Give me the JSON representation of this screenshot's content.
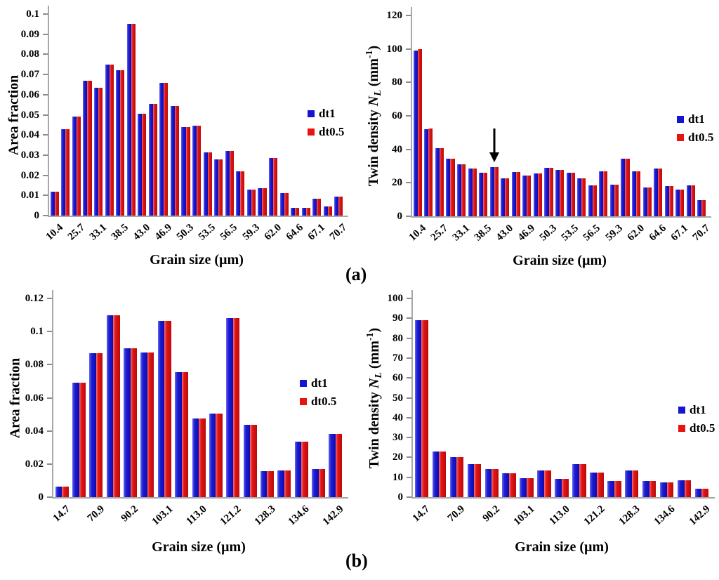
{
  "figure": {
    "panel_labels": {
      "a": "(a)",
      "b": "(b)"
    }
  },
  "colors": {
    "dt1": "#1414d2",
    "dt0.5": "#ea1111",
    "axis": "#a8a8a8",
    "text": "#000000"
  },
  "chart_data": [
    {
      "name": "area-fraction-panel-a",
      "type": "bar",
      "panel": "a",
      "position": "left",
      "title": "",
      "xlabel": "Grain size (µm)",
      "ylabel_rich": [
        [
          "Area fraction",
          ""
        ]
      ],
      "ylim": [
        0,
        0.1
      ],
      "grid": false,
      "legend_position": "right",
      "ytick_labels": [
        "0",
        "0.01",
        "0.02",
        "0.03",
        "0.04",
        "0.05",
        "0.06",
        "0.07",
        "0.08",
        "0.09",
        "0.1"
      ],
      "x_tick_labels": [
        "10.4",
        "25.7",
        "33.1",
        "38.5",
        "43.0",
        "46.9",
        "50.3",
        "53.5",
        "56.5",
        "59.3",
        "62.0",
        "64.6",
        "67.1",
        "70.7"
      ],
      "x_label_step": 2,
      "series": [
        {
          "name": "dt1",
          "values": [
            0.012,
            0.043,
            0.049,
            0.067,
            0.0635,
            0.075,
            0.072,
            0.095,
            0.0505,
            0.0555,
            0.066,
            0.0545,
            0.044,
            0.0445,
            0.0315,
            0.028,
            0.032,
            0.022,
            0.013,
            0.0135,
            0.0285,
            0.011,
            0.004,
            0.004,
            0.0085,
            0.0045,
            0.0095
          ]
        },
        {
          "name": "dt0.5",
          "values": [
            0.012,
            0.043,
            0.049,
            0.067,
            0.0635,
            0.075,
            0.072,
            0.095,
            0.0505,
            0.0555,
            0.066,
            0.0545,
            0.044,
            0.0445,
            0.0315,
            0.028,
            0.032,
            0.022,
            0.013,
            0.0135,
            0.0285,
            0.011,
            0.004,
            0.004,
            0.0085,
            0.0045,
            0.0095
          ]
        }
      ]
    },
    {
      "name": "twin-density-panel-a",
      "type": "bar",
      "panel": "a",
      "position": "right",
      "title": "",
      "xlabel": "Grain size (µm)",
      "ylabel_rich": [
        [
          "Twin density ",
          ""
        ],
        [
          "N",
          "i"
        ],
        [
          "L",
          "isub"
        ],
        [
          " (mm",
          ""
        ],
        [
          "-1",
          "sup"
        ],
        [
          ")",
          ""
        ]
      ],
      "ylim": [
        0,
        120
      ],
      "grid": false,
      "legend_position": "right",
      "ytick_labels": [
        "0",
        "20",
        "40",
        "60",
        "80",
        "100",
        "120"
      ],
      "x_tick_labels": [
        "10.4",
        "25.7",
        "33.1",
        "38.5",
        "43.0",
        "46.9",
        "50.3",
        "53.5",
        "56.5",
        "59.3",
        "62.0",
        "64.6",
        "67.1",
        "70.7"
      ],
      "x_label_step": 2,
      "series": [
        {
          "name": "dt1",
          "values": [
            99,
            52,
            40.5,
            34.5,
            31,
            28.5,
            26,
            29.5,
            22.5,
            26.5,
            24.5,
            25.5,
            29,
            27.5,
            26,
            22.5,
            18.5,
            27,
            19,
            34.5,
            27,
            17,
            28.5,
            18,
            16,
            18.5,
            9.5
          ]
        },
        {
          "name": "dt0.5",
          "values": [
            100,
            52.5,
            40.5,
            34.5,
            31,
            28.5,
            26,
            29.5,
            22.5,
            26.5,
            24.5,
            25.5,
            29,
            27.5,
            26,
            22.5,
            18.5,
            27,
            19,
            34.5,
            27,
            17,
            28.5,
            18,
            16,
            18.5,
            9.5
          ]
        }
      ],
      "annotation": {
        "type": "arrow-down",
        "group_index": 7
      }
    },
    {
      "name": "area-fraction-panel-b",
      "type": "bar",
      "panel": "b",
      "position": "left",
      "title": "",
      "xlabel": "Grain size (µm)",
      "ylabel_rich": [
        [
          "Area fraction",
          ""
        ]
      ],
      "ylim": [
        0,
        0.12
      ],
      "grid": false,
      "legend_position": "right",
      "ytick_labels": [
        "0",
        "0.02",
        "0.04",
        "0.06",
        "0.08",
        "0.1",
        "0.12"
      ],
      "x_tick_labels": [
        "14.7",
        "70.9",
        "90.2",
        "103.1",
        "113.0",
        "121.2",
        "128.3",
        "134.6",
        "142.9"
      ],
      "x_label_step": 2,
      "series": [
        {
          "name": "dt1",
          "values": [
            0.0065,
            0.069,
            0.087,
            0.11,
            0.09,
            0.0875,
            0.1065,
            0.0755,
            0.0475,
            0.0505,
            0.108,
            0.0435,
            0.0155,
            0.016,
            0.0335,
            0.017,
            0.038
          ]
        },
        {
          "name": "dt0.5",
          "values": [
            0.0065,
            0.069,
            0.087,
            0.11,
            0.09,
            0.0875,
            0.1065,
            0.0755,
            0.0475,
            0.0505,
            0.108,
            0.0435,
            0.0155,
            0.016,
            0.0335,
            0.017,
            0.038
          ]
        }
      ]
    },
    {
      "name": "twin-density-panel-b",
      "type": "bar",
      "panel": "b",
      "position": "right",
      "title": "",
      "xlabel": "Grain size (µm)",
      "ylabel_rich": [
        [
          "Twin density ",
          ""
        ],
        [
          "N",
          "i"
        ],
        [
          "L",
          "isub"
        ],
        [
          " (mm",
          ""
        ],
        [
          "-1",
          "sup"
        ],
        [
          ")",
          ""
        ]
      ],
      "ylim": [
        0,
        100
      ],
      "grid": false,
      "legend_position": "right",
      "ytick_labels": [
        "0",
        "10",
        "20",
        "30",
        "40",
        "50",
        "60",
        "70",
        "80",
        "90",
        "100"
      ],
      "x_tick_labels": [
        "14.7",
        "70.9",
        "90.2",
        "103.1",
        "113.0",
        "121.2",
        "128.3",
        "134.6",
        "142.9"
      ],
      "x_label_step": 2,
      "series": [
        {
          "name": "dt1",
          "values": [
            89,
            23,
            20,
            16.5,
            14,
            12,
            9.5,
            13.3,
            9.3,
            16.5,
            12.5,
            8,
            13.3,
            8.2,
            7.3,
            8.5,
            4.2
          ]
        },
        {
          "name": "dt0.5",
          "values": [
            89,
            23,
            20,
            16.5,
            14,
            12,
            9.5,
            13.3,
            9.3,
            16.5,
            12.5,
            8,
            13.3,
            8.2,
            7.3,
            8.5,
            4.2
          ]
        }
      ]
    }
  ]
}
